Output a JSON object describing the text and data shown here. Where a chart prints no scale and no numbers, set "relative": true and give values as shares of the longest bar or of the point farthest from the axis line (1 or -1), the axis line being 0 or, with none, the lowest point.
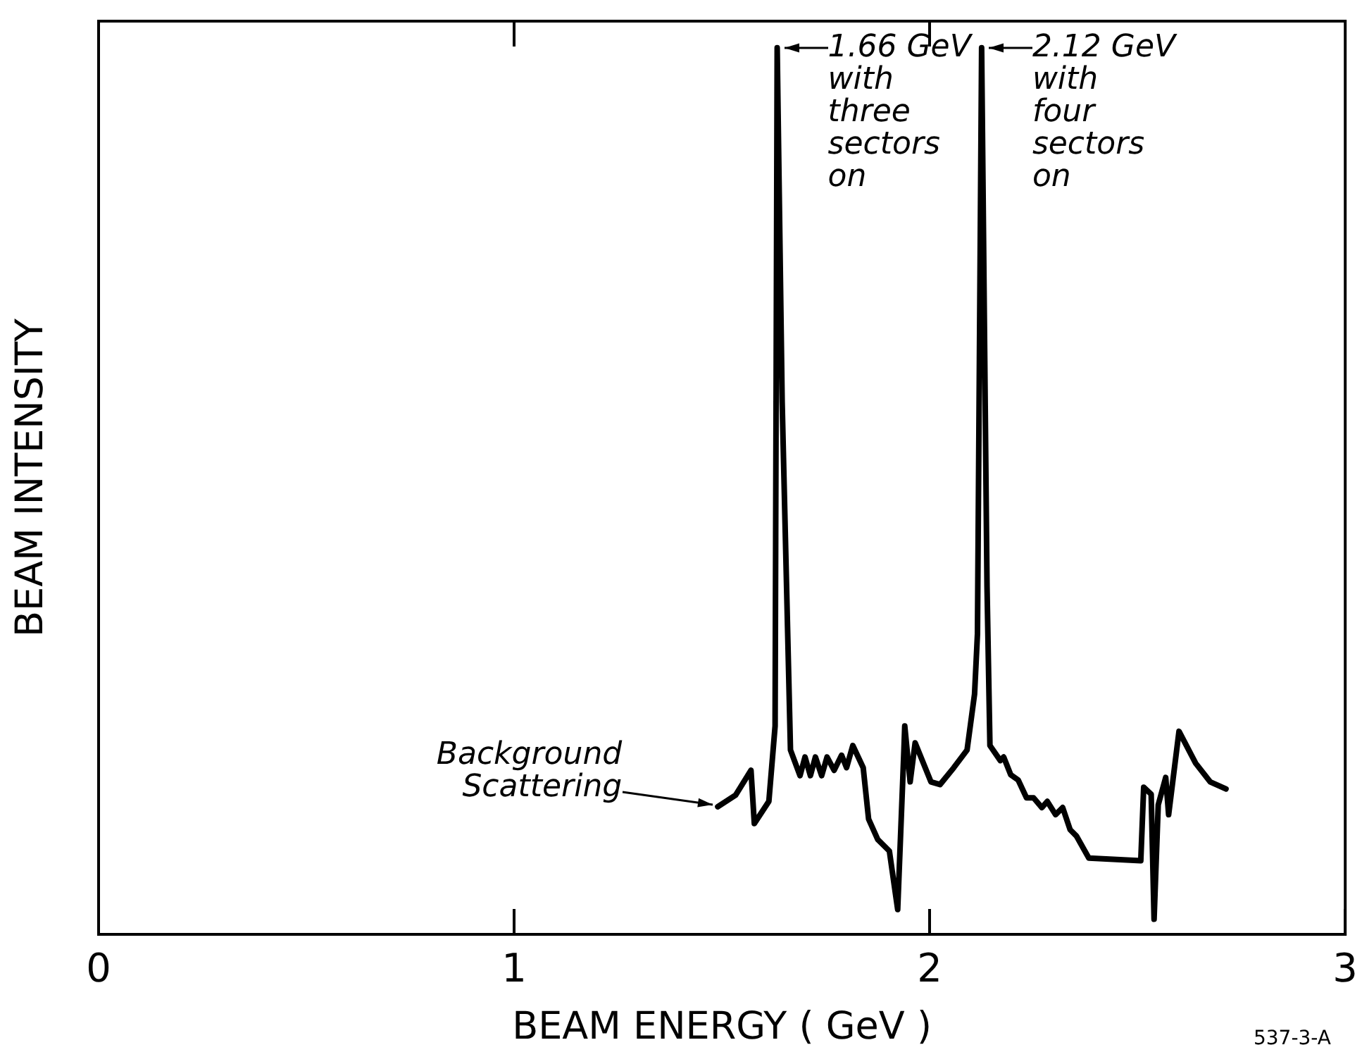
{
  "chart_data": {
    "type": "line",
    "xlabel": "BEAM ENERGY ( GeV )",
    "ylabel": "BEAM INTENSITY",
    "relative": true,
    "xlim": [
      0,
      3
    ],
    "xticks": [
      0,
      1,
      2,
      3
    ],
    "grid": false,
    "marker": "none",
    "line_style": "solid",
    "series": [
      {
        "color": "#000000",
        "x": [
          1.49,
          1.533,
          1.57,
          1.578,
          1.613,
          1.628,
          1.633,
          1.645,
          1.665,
          1.688,
          1.7,
          1.713,
          1.725,
          1.74,
          1.753,
          1.77,
          1.788,
          1.8,
          1.815,
          1.84,
          1.853,
          1.875,
          1.903,
          1.923,
          1.938,
          1.94,
          1.953,
          1.965,
          2.003,
          2.025,
          2.058,
          2.09,
          2.108,
          2.115,
          2.125,
          2.138,
          2.145,
          2.17,
          2.178,
          2.195,
          2.213,
          2.233,
          2.25,
          2.27,
          2.283,
          2.303,
          2.32,
          2.338,
          2.353,
          2.383,
          2.508,
          2.515,
          2.533,
          2.54,
          2.55,
          2.568,
          2.575,
          2.6,
          2.64,
          2.675,
          2.713
        ],
        "values": [
          0.144,
          0.157,
          0.185,
          0.125,
          0.15,
          0.235,
          1,
          0.6,
          0.208,
          0.179,
          0.2,
          0.179,
          0.2,
          0.179,
          0.2,
          0.185,
          0.202,
          0.188,
          0.213,
          0.188,
          0.13,
          0.107,
          0.094,
          0.028,
          0.208,
          0.235,
          0.172,
          0.216,
          0.172,
          0.169,
          0.188,
          0.208,
          0.271,
          0.339,
          1,
          0.392,
          0.213,
          0.196,
          0.2,
          0.18,
          0.174,
          0.154,
          0.154,
          0.143,
          0.15,
          0.135,
          0.143,
          0.118,
          0.111,
          0.086,
          0.083,
          0.166,
          0.158,
          0.017,
          0.146,
          0.177,
          0.135,
          0.229,
          0.193,
          0.172,
          0.164
        ]
      }
    ],
    "annotations": [
      {
        "text": "1.66 GeV\nwith\nthree\nsectors\non",
        "x": 1.633,
        "y": 1
      },
      {
        "text": "2.12 GeV\nwith\nfour\nsectors\non",
        "x": 2.125,
        "y": 1
      },
      {
        "text": "Background\nScattering",
        "x": 1.49,
        "y": 0.144
      },
      "537-3-A"
    ]
  }
}
